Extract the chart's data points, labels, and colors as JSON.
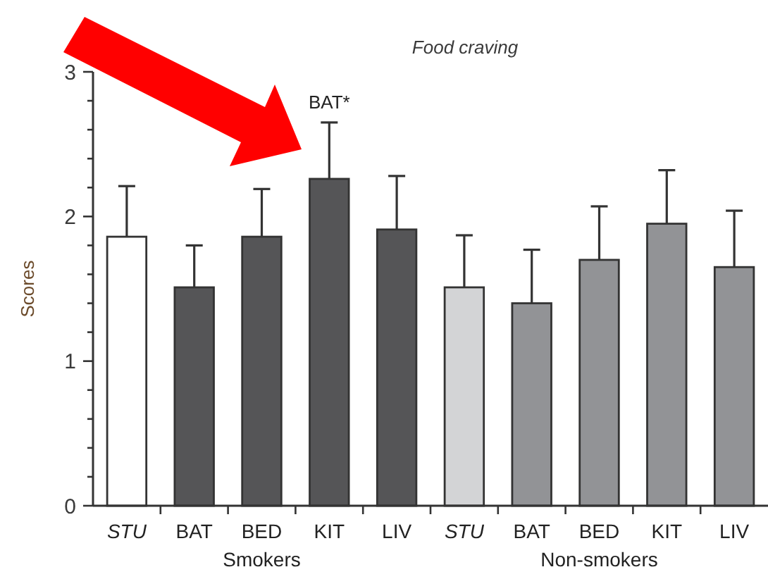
{
  "chart_data": {
    "type": "bar",
    "title": "Food craving",
    "ylabel": "Scores",
    "categories": [
      "STU",
      "BAT",
      "BED",
      "KIT",
      "LIV",
      "STU",
      "BAT",
      "BED",
      "KIT",
      "LIV"
    ],
    "values": [
      1.86,
      1.51,
      1.86,
      2.26,
      1.91,
      1.51,
      1.4,
      1.7,
      1.95,
      1.65
    ],
    "errors": [
      0.35,
      0.29,
      0.33,
      0.39,
      0.37,
      0.36,
      0.37,
      0.37,
      0.37,
      0.39
    ],
    "colors": [
      "#ffffff",
      "#555557",
      "#555557",
      "#555557",
      "#555557",
      "#d3d4d6",
      "#929396",
      "#929396",
      "#929396",
      "#929396"
    ],
    "ylim": [
      0,
      3
    ],
    "yticks": [
      0,
      {
        "value": 0.2,
        "label": null
      },
      {
        "value": 0.4,
        "label": null
      },
      {
        "value": 0.6,
        "label": null
      },
      {
        "value": 0.8,
        "label": null
      },
      1,
      {
        "value": 1.2,
        "label": null
      },
      {
        "value": 1.4,
        "label": null
      },
      {
        "value": 1.6,
        "label": null
      },
      {
        "value": 1.8,
        "label": null
      },
      2,
      {
        "value": 2.2,
        "label": null
      },
      {
        "value": 2.4,
        "label": null
      },
      {
        "value": 2.6,
        "label": null
      },
      {
        "value": 2.8,
        "label": null
      },
      3
    ],
    "annotations": [
      {
        "text": "BAT*",
        "x": "KIT",
        "y": 2.65
      },
      "Smokers",
      "Non-smokers"
    ],
    "grid": false
  }
}
